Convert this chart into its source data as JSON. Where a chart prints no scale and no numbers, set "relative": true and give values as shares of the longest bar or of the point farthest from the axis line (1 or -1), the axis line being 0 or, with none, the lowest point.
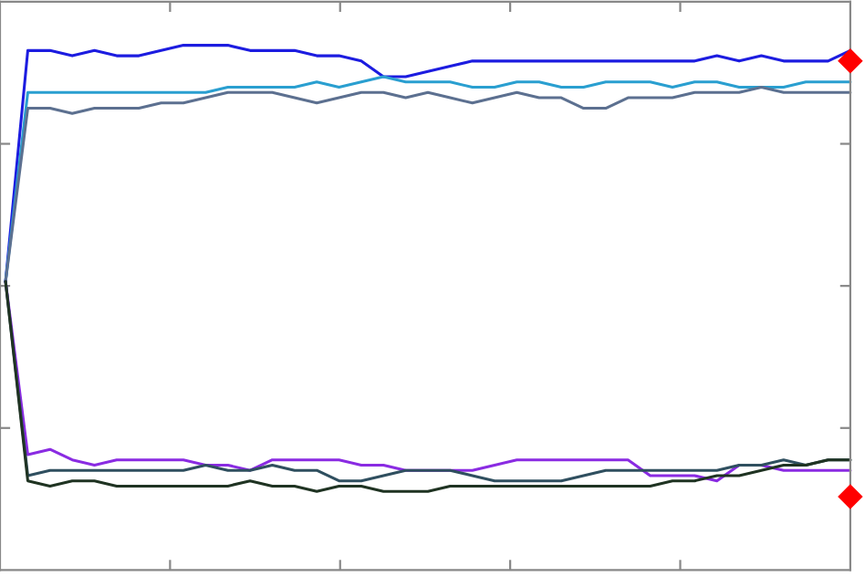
{
  "chart_data": {
    "type": "line",
    "relative": true,
    "grid": false,
    "legend": false,
    "marker": "none",
    "line_style": "solid",
    "categories": [
      null,
      null,
      null,
      null,
      null,
      null,
      null,
      null,
      null,
      null,
      null,
      null,
      null,
      null,
      null,
      null,
      null,
      null,
      null,
      null,
      null,
      null,
      null,
      null,
      null,
      null,
      null,
      null,
      null,
      null,
      null,
      null,
      null,
      null,
      null,
      null,
      null,
      null,
      null
    ],
    "series": [
      {
        "color": "#1c1ce0",
        "values": [
          0.55,
          0.99,
          0.99,
          0.98,
          0.99,
          0.98,
          0.98,
          0.99,
          1.0,
          1.0,
          1.0,
          0.99,
          0.99,
          0.99,
          0.98,
          0.98,
          0.97,
          0.94,
          0.94,
          0.95,
          0.96,
          0.97,
          0.97,
          0.97,
          0.97,
          0.97,
          0.97,
          0.97,
          0.97,
          0.97,
          0.97,
          0.97,
          0.98,
          0.97,
          0.98,
          0.97,
          0.97,
          0.97,
          0.99
        ]
      },
      {
        "color": "#2a9fd0",
        "values": [
          0.55,
          0.91,
          0.91,
          0.91,
          0.91,
          0.91,
          0.91,
          0.91,
          0.91,
          0.91,
          0.92,
          0.92,
          0.92,
          0.92,
          0.93,
          0.92,
          0.93,
          0.94,
          0.93,
          0.93,
          0.93,
          0.92,
          0.92,
          0.93,
          0.93,
          0.92,
          0.92,
          0.93,
          0.93,
          0.93,
          0.92,
          0.93,
          0.93,
          0.92,
          0.92,
          0.92,
          0.93,
          0.93,
          0.93
        ]
      },
      {
        "color": "#5c7090",
        "values": [
          0.55,
          0.88,
          0.88,
          0.87,
          0.88,
          0.88,
          0.88,
          0.89,
          0.89,
          0.9,
          0.91,
          0.91,
          0.91,
          0.9,
          0.89,
          0.9,
          0.91,
          0.91,
          0.9,
          0.91,
          0.9,
          0.89,
          0.9,
          0.91,
          0.9,
          0.9,
          0.88,
          0.88,
          0.9,
          0.9,
          0.9,
          0.91,
          0.91,
          0.91,
          0.92,
          0.91,
          0.91,
          0.91,
          0.91
        ]
      },
      {
        "color": "#8a2be2",
        "values": [
          0.55,
          0.22,
          0.23,
          0.21,
          0.2,
          0.21,
          0.21,
          0.21,
          0.21,
          0.2,
          0.2,
          0.19,
          0.21,
          0.21,
          0.21,
          0.21,
          0.2,
          0.2,
          0.19,
          0.19,
          0.19,
          0.19,
          0.2,
          0.21,
          0.21,
          0.21,
          0.21,
          0.21,
          0.21,
          0.18,
          0.18,
          0.18,
          0.17,
          0.2,
          0.2,
          0.19,
          0.19,
          0.19,
          0.19
        ]
      },
      {
        "color": "#2f4f5f",
        "values": [
          0.55,
          0.18,
          0.19,
          0.19,
          0.19,
          0.19,
          0.19,
          0.19,
          0.19,
          0.2,
          0.19,
          0.19,
          0.2,
          0.19,
          0.19,
          0.17,
          0.17,
          0.18,
          0.19,
          0.19,
          0.19,
          0.18,
          0.17,
          0.17,
          0.17,
          0.17,
          0.18,
          0.19,
          0.19,
          0.19,
          0.19,
          0.19,
          0.19,
          0.2,
          0.2,
          0.21,
          0.2,
          0.21,
          0.21
        ]
      },
      {
        "color": "#1f3322",
        "values": [
          0.55,
          0.17,
          0.16,
          0.17,
          0.17,
          0.16,
          0.16,
          0.16,
          0.16,
          0.16,
          0.16,
          0.17,
          0.16,
          0.16,
          0.15,
          0.16,
          0.16,
          0.15,
          0.15,
          0.15,
          0.16,
          0.16,
          0.16,
          0.16,
          0.16,
          0.16,
          0.16,
          0.16,
          0.16,
          0.16,
          0.17,
          0.17,
          0.18,
          0.18,
          0.19,
          0.2,
          0.2,
          0.21,
          0.21
        ]
      },
      {
        "marker": "diamond",
        "color": "#ff0000",
        "values": [
          null,
          null,
          null,
          null,
          null,
          null,
          null,
          null,
          null,
          null,
          null,
          null,
          null,
          null,
          null,
          null,
          null,
          null,
          null,
          null,
          null,
          null,
          null,
          null,
          null,
          null,
          null,
          null,
          null,
          null,
          null,
          null,
          null,
          null,
          null,
          null,
          null,
          null,
          0.97
        ]
      },
      {
        "marker": "diamond",
        "color": "#ff0000",
        "values": [
          null,
          null,
          null,
          null,
          null,
          null,
          null,
          null,
          null,
          null,
          null,
          null,
          null,
          null,
          null,
          null,
          null,
          null,
          null,
          null,
          null,
          null,
          null,
          null,
          null,
          null,
          null,
          null,
          null,
          null,
          null,
          null,
          null,
          null,
          null,
          null,
          null,
          null,
          0.14
        ]
      }
    ]
  }
}
